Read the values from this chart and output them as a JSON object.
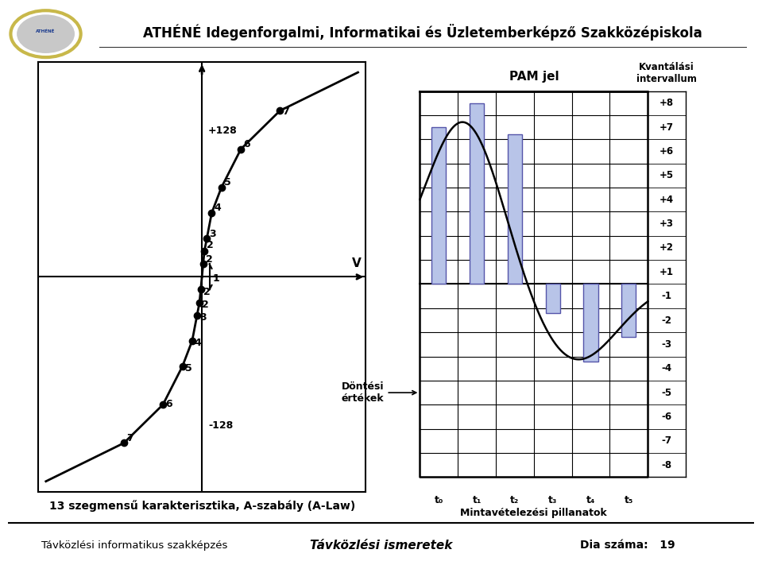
{
  "title": "ATHÉNÉ Idegenforgalmi, Informatikai és Üzletemberképző Szakközépiskola",
  "subtitle_left": "Távközlési informatikus szakképzés",
  "subtitle_center": "Távközlési ismeretek",
  "subtitle_right": "Dia száma:   19",
  "caption_left": "13 szegmensű karakterisztika, A-szabály (A-Law)",
  "caption_center_label": "Döntési\nértékek",
  "pam_label": "PAM jel",
  "kvant_label": "Kvantálási\nintervallum",
  "mintav_label": "Mintavételezési pillanatok",
  "v_label": "V",
  "y_label_pos": "+128",
  "y_label_neg": "-128",
  "bg_color": "#ffffff",
  "curve_color": "#000000",
  "bar_color": "#b8c4e8",
  "bar_edge_color": "#5555aa",
  "grid_color": "#000000",
  "t_labels": [
    "t₀",
    "t₁",
    "t₂",
    "t₃",
    "t₄",
    "t₅"
  ],
  "kvant_labels": [
    "+8",
    "+7",
    "+6",
    "+5",
    "+4",
    "+3",
    "+2",
    "+1",
    "-1",
    "-2",
    "-3",
    "-4",
    "-5",
    "-6",
    "-7",
    "-8"
  ],
  "pam_bars": [
    6.5,
    7.5,
    6.2,
    -1.2,
    -3.2,
    -2.2
  ],
  "logo_bg": "#1a3a8e"
}
